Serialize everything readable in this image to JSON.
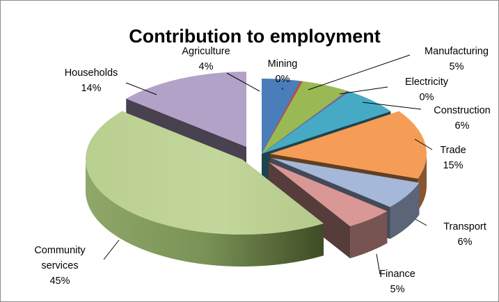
{
  "chart_data": {
    "type": "pie",
    "title": "Contribution to employment",
    "legend": "none",
    "slices": [
      {
        "category": "Agriculture",
        "value": 4,
        "label": "4%",
        "color": "#4a7ebb"
      },
      {
        "category": "Mining",
        "value": 0,
        "label": "0%",
        "color": "#be4b48"
      },
      {
        "category": "Manufacturing",
        "value": 5,
        "label": "5%",
        "color": "#98b954"
      },
      {
        "category": "Electricity",
        "value": 0,
        "label": "0%",
        "color": "#7d5fa0"
      },
      {
        "category": "Construction",
        "value": 6,
        "label": "6%",
        "color": "#46aac5"
      },
      {
        "category": "Trade",
        "value": 15,
        "label": "15%",
        "color": "#f59d56"
      },
      {
        "category": "Transport",
        "value": 6,
        "label": "6%",
        "color": "#a5b8d9"
      },
      {
        "category": "Finance",
        "value": 5,
        "label": "5%",
        "color": "#d99795"
      },
      {
        "category": "Community services",
        "value": 45,
        "label": "45%",
        "color": "#c3d69b"
      },
      {
        "category": "Households",
        "value": 14,
        "label": "14%",
        "color": "#b3a2c7"
      }
    ]
  }
}
